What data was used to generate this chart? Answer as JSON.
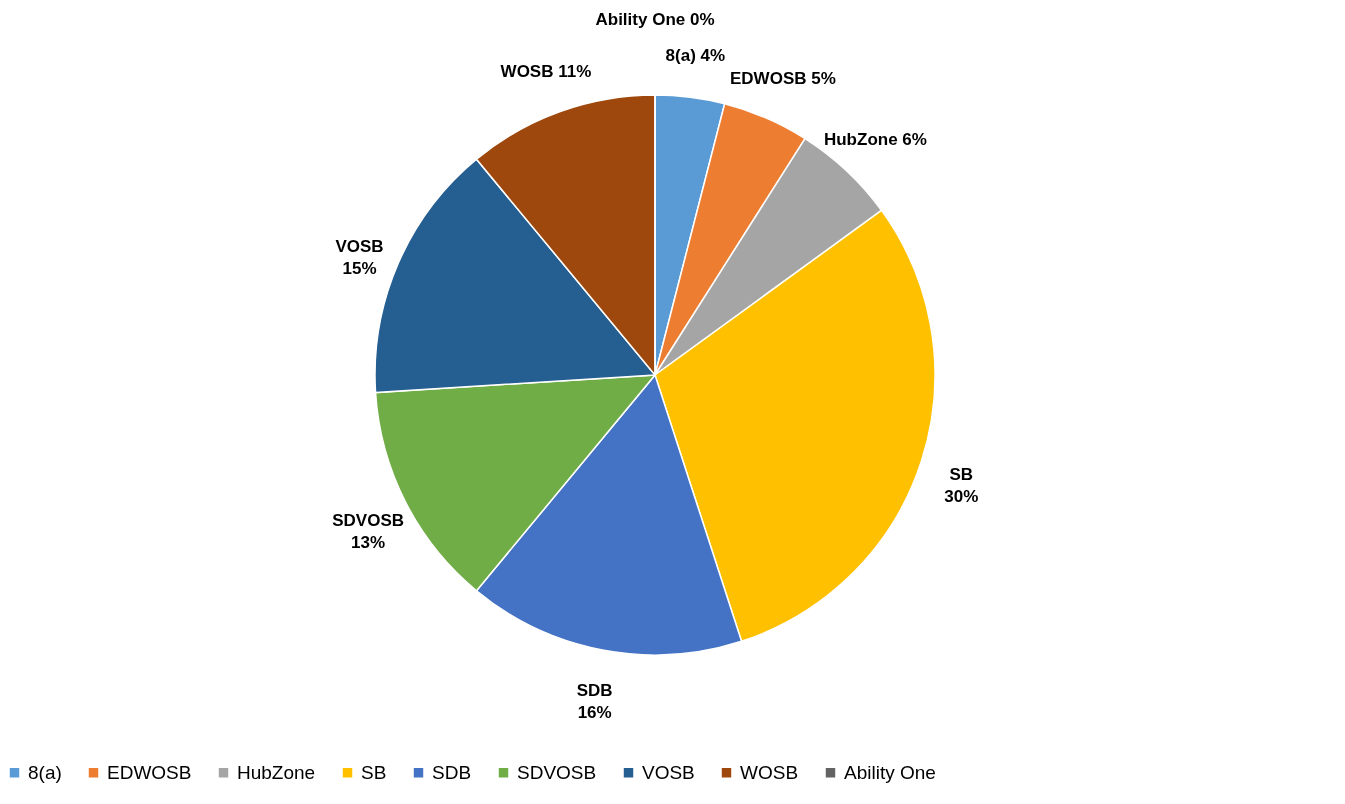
{
  "chart_data": {
    "type": "pie",
    "categories": [
      "8(a)",
      "EDWOSB",
      "HubZone",
      "SB",
      "SDB",
      "SDVOSB",
      "VOSB",
      "WOSB",
      "Ability One"
    ],
    "values": [
      4,
      5,
      6,
      30,
      16,
      13,
      15,
      11,
      0
    ],
    "value_labels": [
      "4%",
      "5%",
      "6%",
      "30%",
      "16%",
      "13%",
      "15%",
      "11%",
      "0%"
    ],
    "colors": [
      "#5b9bd5",
      "#ed7d31",
      "#a5a5a5",
      "#ffc000",
      "#4472c4",
      "#70ad47",
      "#255e91",
      "#9e480e",
      "#636363"
    ],
    "legend": "bottom"
  }
}
